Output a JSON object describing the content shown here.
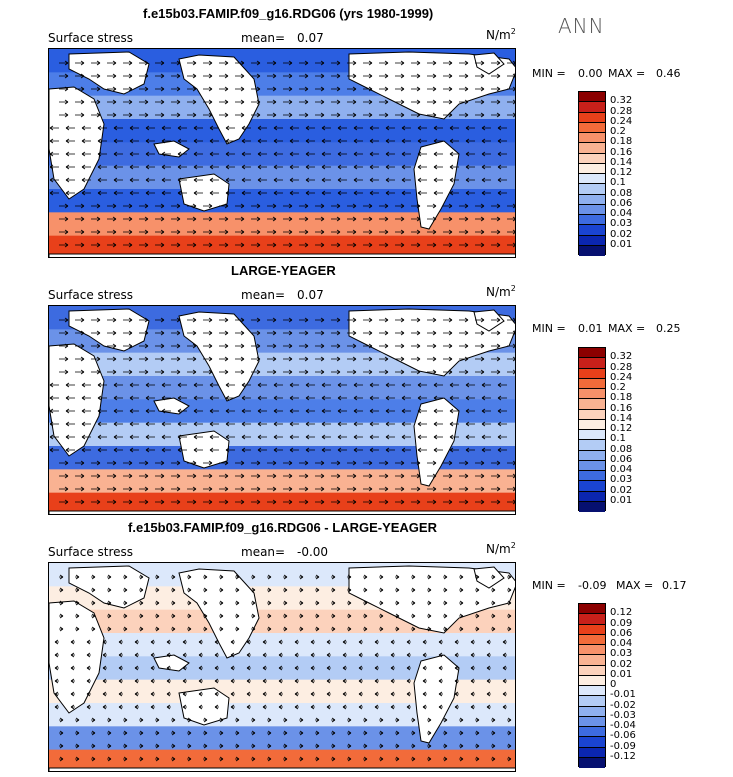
{
  "figure": {
    "season": "ANN",
    "field_label": "Surface stress",
    "units": "N/m",
    "units_exp": "2"
  },
  "chart_data": [
    {
      "type": "heatmap",
      "title": "f.e15b03.FAMIP.f09_g16.RDG06 (yrs 1980-1999)",
      "field": "Surface stress",
      "mean_label": "mean=",
      "mean_value": "0.07",
      "min_label": "MIN =",
      "min_value": "0.00",
      "max_label": "MAX =",
      "max_value": "0.46",
      "colorbar_levels": [
        "0.32",
        "0.28",
        "0.24",
        "0.2",
        "0.18",
        "0.16",
        "0.14",
        "0.12",
        "0.1",
        "0.08",
        "0.06",
        "0.04",
        "0.03",
        "0.02",
        "0.01"
      ],
      "colorbar_colors": [
        "#8b0000",
        "#c8201a",
        "#e8401a",
        "#f26b3a",
        "#f7916a",
        "#f9b292",
        "#fcd2bc",
        "#fdeee2",
        "#dce8fb",
        "#b3ccf5",
        "#8fb0ef",
        "#6b92e8",
        "#3d6be0",
        "#1a44d1",
        "#0b26b0",
        "#061070"
      ]
    },
    {
      "type": "heatmap",
      "title": "LARGE-YEAGER",
      "field": "Surface stress",
      "mean_label": "mean=",
      "mean_value": "0.07",
      "min_label": "MIN =",
      "min_value": "0.01",
      "max_label": "MAX =",
      "max_value": "0.25",
      "colorbar_levels": [
        "0.32",
        "0.28",
        "0.24",
        "0.2",
        "0.18",
        "0.16",
        "0.14",
        "0.12",
        "0.1",
        "0.08",
        "0.06",
        "0.04",
        "0.03",
        "0.02",
        "0.01"
      ],
      "colorbar_colors": [
        "#8b0000",
        "#c8201a",
        "#e8401a",
        "#f26b3a",
        "#f7916a",
        "#f9b292",
        "#fcd2bc",
        "#fdeee2",
        "#dce8fb",
        "#b3ccf5",
        "#8fb0ef",
        "#6b92e8",
        "#3d6be0",
        "#1a44d1",
        "#0b26b0",
        "#061070"
      ]
    },
    {
      "type": "heatmap",
      "title": "f.e15b03.FAMIP.f09_g16.RDG06 - LARGE-YEAGER",
      "field": "Surface stress",
      "mean_label": "mean=",
      "mean_value": "-0.00",
      "min_label": "MIN =",
      "min_value": "-0.09",
      "max_label": "MAX =",
      "max_value": "0.17",
      "colorbar_levels": [
        "0.12",
        "0.09",
        "0.06",
        "0.04",
        "0.03",
        "0.02",
        "0.01",
        "0",
        "-0.01",
        "-0.02",
        "-0.03",
        "-0.04",
        "-0.06",
        "-0.09",
        "-0.12"
      ],
      "colorbar_colors": [
        "#8b0000",
        "#c8201a",
        "#e8401a",
        "#f26b3a",
        "#f7916a",
        "#f9b292",
        "#fcd2bc",
        "#fdeee2",
        "#dce8fb",
        "#b3ccf5",
        "#8fb0ef",
        "#6b92e8",
        "#3d6be0",
        "#1a44d1",
        "#0b26b0",
        "#061070"
      ]
    }
  ]
}
